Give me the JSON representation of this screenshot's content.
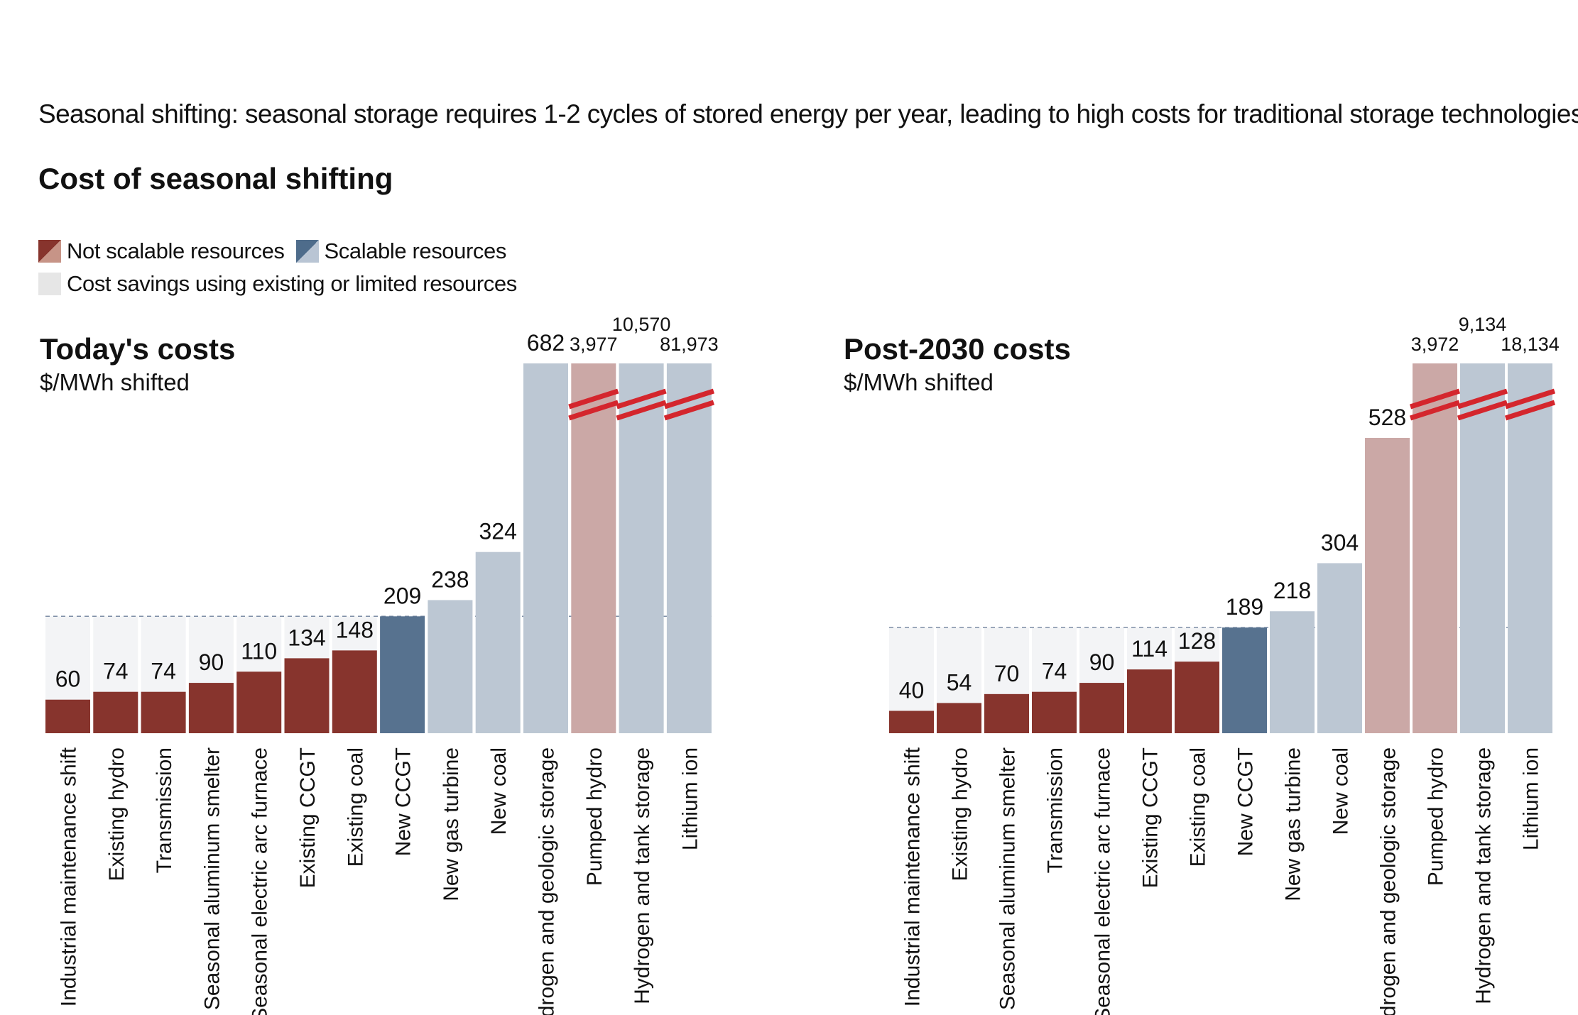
{
  "headline": "Seasonal shifting: seasonal storage requires 1-2 cycles of stored energy per year, leading to high costs for traditional storage technologies",
  "title": "Cost of seasonal shifting",
  "legend": {
    "not_scalable": "Not scalable resources",
    "scalable": "Scalable resources",
    "savings": "Cost savings using existing or limited resources"
  },
  "colors": {
    "not_scalable_existing": "#87342d",
    "not_scalable_new": "#cba8a6",
    "scalable_existing": "#57728f",
    "scalable_new": "#bcc7d3",
    "savings_background": "#f3f4f6",
    "threshold_line": "#7d8ea6",
    "axis_break": "#d4262d"
  },
  "chart_data": [
    {
      "type": "bar",
      "title": "Today's costs",
      "ylabel": "$/MWh shifted",
      "categories": [
        "Industrial maintenance shift",
        "Existing hydro",
        "Transmission",
        "Seasonal aluminum smelter",
        "Seasonal electric arc furnace",
        "Existing CCGT",
        "Existing coal",
        "New CCGT",
        "New gas turbine",
        "New coal",
        "Hydrogen and geologic storage",
        "Pumped hydro",
        "Hydrogen and tank storage",
        "Lithium ion"
      ],
      "values": [
        60,
        74,
        74,
        90,
        110,
        134,
        148,
        209,
        238,
        324,
        682,
        3977,
        10570,
        81973
      ],
      "value_labels": [
        "60",
        "74",
        "74",
        "90",
        "110",
        "134",
        "148",
        "209",
        "238",
        "324",
        "682",
        "3,977",
        "10,570",
        "81,973"
      ],
      "classes": [
        "not_scalable_existing",
        "not_scalable_existing",
        "not_scalable_existing",
        "not_scalable_existing",
        "not_scalable_existing",
        "not_scalable_existing",
        "not_scalable_existing",
        "scalable_existing",
        "scalable_new",
        "scalable_new",
        "scalable_new",
        "not_scalable_new",
        "scalable_new",
        "scalable_new"
      ],
      "axis_break": [
        false,
        false,
        false,
        false,
        false,
        false,
        false,
        false,
        false,
        false,
        false,
        true,
        true,
        true
      ],
      "savings_threshold": 209,
      "ylim": [
        0,
        760
      ]
    },
    {
      "type": "bar",
      "title": "Post-2030 costs",
      "ylabel": "$/MWh shifted",
      "categories": [
        "Industrial maintenance shift",
        "Existing hydro",
        "Seasonal aluminum smelter",
        "Transmission",
        "Seasonal electric arc furnace",
        "Existing CCGT",
        "Existing coal",
        "New CCGT",
        "New gas turbine",
        "New coal",
        "Hydrogen and geologic storage",
        "Pumped hydro",
        "Hydrogen and tank storage",
        "Lithium ion"
      ],
      "values": [
        40,
        54,
        70,
        74,
        90,
        114,
        128,
        189,
        218,
        304,
        528,
        3972,
        9134,
        18134
      ],
      "value_labels": [
        "40",
        "54",
        "70",
        "74",
        "90",
        "114",
        "128",
        "189",
        "218",
        "304",
        "528",
        "3,972",
        "9,134",
        "18,134"
      ],
      "classes": [
        "not_scalable_existing",
        "not_scalable_existing",
        "not_scalable_existing",
        "not_scalable_existing",
        "not_scalable_existing",
        "not_scalable_existing",
        "not_scalable_existing",
        "scalable_existing",
        "scalable_new",
        "scalable_new",
        "not_scalable_new",
        "not_scalable_new",
        "scalable_new",
        "scalable_new"
      ],
      "axis_break": [
        false,
        false,
        false,
        false,
        false,
        false,
        false,
        false,
        false,
        false,
        false,
        true,
        true,
        true
      ],
      "savings_threshold": 189,
      "ylim": [
        0,
        760
      ]
    }
  ]
}
